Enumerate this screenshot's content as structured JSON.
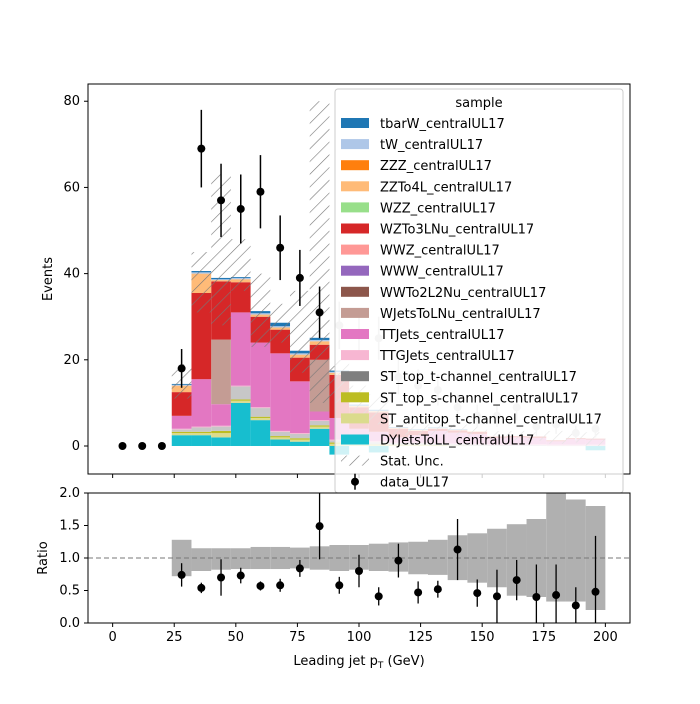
{
  "chart_data": [
    {
      "type": "bar",
      "subtype": "stacked-histogram",
      "ylabel": "Events",
      "xlim": [
        -10,
        210
      ],
      "ylim": [
        -6.5,
        84
      ],
      "yticks": [
        0,
        20,
        40,
        60,
        80
      ],
      "bins": [
        24,
        32,
        40,
        48,
        56,
        64,
        72,
        80,
        88,
        96,
        104,
        112,
        120,
        128,
        136,
        144,
        152,
        160,
        168,
        176,
        184,
        192,
        200
      ],
      "legend": {
        "title": "sample",
        "position": "upper right",
        "entries": [
          {
            "label": "tbarW_centralUL17",
            "color": "#1f77b4"
          },
          {
            "label": "tW_centralUL17",
            "color": "#aec7e8"
          },
          {
            "label": "ZZZ_centralUL17",
            "color": "#ff7f0e"
          },
          {
            "label": "ZZTo4L_centralUL17",
            "color": "#ffbb78"
          },
          {
            "label": "WZZ_centralUL17",
            "color": "#98df8a"
          },
          {
            "label": "WZTo3LNu_centralUL17",
            "color": "#d62728"
          },
          {
            "label": "WWZ_centralUL17",
            "color": "#ff9896"
          },
          {
            "label": "WWW_centralUL17",
            "color": "#9467bd"
          },
          {
            "label": "WWTo2L2Nu_centralUL17",
            "color": "#8c564b"
          },
          {
            "label": "WJetsToLNu_centralUL17",
            "color": "#c49c94"
          },
          {
            "label": "TTJets_centralUL17",
            "color": "#e377c2"
          },
          {
            "label": "TTGJets_centralUL17",
            "color": "#f7b6d2"
          },
          {
            "label": "ST_top_t-channel_centralUL17",
            "color": "#7f7f7f"
          },
          {
            "label": "ST_top_s-channel_centralUL17",
            "color": "#bcbd22"
          },
          {
            "label": "ST_antitop_t-channel_centralUL17",
            "color": "#dbdb8d"
          },
          {
            "label": "DYJetsToLL_centralUL17",
            "color": "#17becf"
          },
          {
            "label": "Stat. Unc.",
            "kind": "hatch"
          },
          {
            "label": "data_UL17",
            "kind": "errorbar"
          }
        ]
      },
      "stack": [
        {
          "name": "DYJetsToLL_centralUL17",
          "color": "#17becf",
          "values": [
            2.5,
            2.5,
            2,
            10,
            6,
            1.5,
            1,
            4,
            -2,
            0,
            -1.5,
            0,
            0,
            0,
            0,
            0,
            0,
            0,
            0,
            0,
            0,
            -1
          ]
        },
        {
          "name": "ST_antitop_t-channel_centralUL17",
          "color": "#dbdb8d",
          "values": [
            0.5,
            0.5,
            1,
            0.5,
            0.5,
            0.5,
            0.5,
            0.5,
            0.5,
            0.2,
            0.3,
            0.2,
            0.2,
            0.1,
            0.1,
            0,
            0,
            0,
            0,
            0,
            0,
            0
          ]
        },
        {
          "name": "ST_top_s-channel_centralUL17",
          "color": "#bcbd22",
          "values": [
            0.3,
            0.3,
            0.5,
            0.3,
            0.3,
            0.3,
            0.3,
            0.3,
            0.3,
            0.1,
            0.1,
            0.1,
            0.1,
            0.1,
            0,
            0,
            0,
            0,
            0,
            0,
            0,
            0
          ]
        },
        {
          "name": "ST_top_t-channel_centralUL17",
          "color": "#c7c7c7",
          "values": [
            0.5,
            1,
            1,
            3,
            2,
            1,
            1,
            1,
            0.5,
            0.5,
            0.5,
            0.3,
            0.3,
            0.3,
            0.3,
            0.3,
            0.2,
            0.2,
            0.2,
            0.1,
            0.1,
            0.1
          ]
        },
        {
          "name": "TTGJets_centralUL17",
          "color": "#f7b6d2",
          "values": [
            0.2,
            0.2,
            0.2,
            0.2,
            0.2,
            0.2,
            0.2,
            0.2,
            0.2,
            0.2,
            0.2,
            0.2,
            0.2,
            0.2,
            0.2,
            0.2,
            0.2,
            0.2,
            0.2,
            0.2,
            0.2,
            0.2
          ]
        },
        {
          "name": "TTJets_centralUL17",
          "color": "#e377c2",
          "values": [
            3,
            11,
            5,
            17,
            15,
            18,
            12,
            2,
            5,
            3,
            2.2,
            1.2,
            1.7,
            2.8,
            2.5,
            2.3,
            1.5,
            1.6,
            1.5,
            0.8,
            1.3,
            1.2
          ]
        },
        {
          "name": "WJetsToLNu_centralUL17",
          "color": "#c49c94",
          "values": [
            0,
            0,
            15,
            0,
            0,
            0,
            0,
            12,
            0,
            0,
            0,
            0,
            0,
            0,
            0,
            0,
            0,
            0,
            0,
            0,
            0,
            0
          ]
        },
        {
          "name": "WWTo2L2Nu_centralUL17",
          "color": "#8c564b",
          "values": [
            0,
            0,
            0,
            0,
            0,
            0,
            0,
            0,
            0,
            0,
            0,
            0,
            0,
            0,
            0,
            0,
            0,
            0,
            0,
            0,
            0,
            0
          ]
        },
        {
          "name": "WWW_centralUL17",
          "color": "#9467bd",
          "values": [
            0,
            0,
            0,
            0,
            0,
            0,
            0,
            0,
            0,
            0,
            0,
            0,
            0,
            0,
            0,
            0,
            0,
            0,
            0,
            0,
            0,
            0
          ]
        },
        {
          "name": "WWZ_centralUL17",
          "color": "#ff9896",
          "values": [
            0,
            0,
            0,
            0,
            0,
            0,
            0,
            0,
            0,
            0,
            0,
            0,
            0,
            0,
            0,
            0,
            0,
            0,
            0,
            0,
            0,
            0
          ]
        },
        {
          "name": "WZTo3LNu_centralUL17",
          "color": "#d62728",
          "values": [
            5.5,
            20,
            13.5,
            7,
            6,
            5.5,
            5.5,
            3.5,
            10,
            5,
            4.5,
            2,
            1,
            0.5,
            0.5,
            0.5,
            0.3,
            0.3,
            0.3,
            0.2,
            0.2,
            0.2
          ]
        },
        {
          "name": "WZZ_centralUL17",
          "color": "#98df8a",
          "values": [
            0,
            0,
            0,
            0,
            0,
            0,
            0,
            0,
            0,
            0,
            0,
            0,
            0,
            0,
            0,
            0,
            0,
            0,
            0,
            0,
            0,
            0
          ]
        },
        {
          "name": "ZZTo4L_centralUL17",
          "color": "#ffbb78",
          "values": [
            1.5,
            4.5,
            0.3,
            0.7,
            0.5,
            0.5,
            0.7,
            0.8,
            0.5,
            0.3,
            0.3,
            0.2,
            0.2,
            0.1,
            0.1,
            0.1,
            0,
            0,
            0,
            0,
            0,
            0
          ]
        },
        {
          "name": "ZZZ_centralUL17",
          "color": "#ff7f0e",
          "values": [
            0,
            0,
            0,
            0,
            0,
            0,
            0,
            0,
            0,
            0,
            0,
            0,
            0,
            0,
            0,
            0,
            0,
            0,
            0,
            0,
            0,
            0
          ]
        },
        {
          "name": "tW_centralUL17",
          "color": "#aec7e8",
          "values": [
            0.2,
            0.3,
            0.2,
            0.3,
            0.3,
            0.3,
            0.3,
            0.3,
            0.2,
            0.1,
            0.1,
            0.1,
            0.1,
            0.1,
            0.1,
            0,
            0,
            0,
            0,
            0,
            0,
            0
          ]
        },
        {
          "name": "tbarW_centralUL17",
          "color": "#1f77b4",
          "values": [
            0.2,
            0.3,
            0.3,
            0.2,
            0.5,
            0.8,
            0.6,
            0.5,
            0.3,
            0.2,
            0.2,
            0.1,
            0.1,
            0.1,
            0.1,
            0,
            0,
            0,
            0,
            0,
            0,
            0
          ]
        }
      ],
      "stat_unc": {
        "low": [
          11,
          31,
          28,
          36,
          23,
          24,
          17,
          10,
          10,
          6,
          5,
          2.5,
          2.5,
          2.5,
          2.5,
          2.3,
          1.5,
          1.4,
          1.2,
          0.5,
          0.8,
          0
        ],
        "high": [
          19,
          45,
          63,
          48,
          40,
          33,
          36,
          80,
          20,
          14,
          12,
          5.5,
          5,
          5,
          5,
          4.5,
          3.5,
          3.5,
          3.2,
          3.5,
          3,
          3.2
        ]
      },
      "data": {
        "name": "data_UL17",
        "x": [
          4,
          12,
          20,
          28,
          36,
          44,
          52,
          60,
          68,
          76,
          84,
          92,
          100,
          108,
          116,
          124,
          132,
          140,
          148,
          156,
          164,
          172,
          180,
          188,
          196
        ],
        "y": [
          0,
          0,
          0,
          18,
          69,
          57,
          55,
          59,
          46,
          39,
          31,
          28,
          26,
          25,
          16,
          14,
          13,
          9,
          7,
          7,
          9,
          4.5,
          5,
          3,
          4
        ],
        "err": [
          0,
          0,
          0,
          4.5,
          9,
          8.5,
          8,
          8.5,
          7.5,
          6.5,
          6,
          5.5,
          5.2,
          5,
          4,
          3.8,
          3.6,
          3,
          2.6,
          2.6,
          3,
          2.1,
          2.2,
          1.7,
          2
        ],
        "faded_from_x": 90
      }
    },
    {
      "type": "scatter",
      "subtype": "ratio",
      "xlabel": "Leading jet  p",
      "xlabel_sub": "T",
      "xlabel_unit": " (GeV)",
      "ylabel": "Ratio",
      "xlim": [
        -10,
        210
      ],
      "ylim": [
        0,
        2
      ],
      "yticks": [
        "0.0",
        "0.5",
        "1.0",
        "1.5",
        "2.0"
      ],
      "xticks": [
        "0",
        "25",
        "50",
        "75",
        "100",
        "125",
        "150",
        "175",
        "200"
      ],
      "reference_line": 1.0,
      "band": {
        "low": [
          0.72,
          0.8,
          0.82,
          0.83,
          0.83,
          0.83,
          0.84,
          0.82,
          0.8,
          0.82,
          0.8,
          0.79,
          0.75,
          0.74,
          0.66,
          0.62,
          0.55,
          0.42,
          0.4,
          0.33,
          0.33,
          0.2
        ],
        "high": [
          1.28,
          1.15,
          1.15,
          1.15,
          1.17,
          1.17,
          1.16,
          1.18,
          1.2,
          1.2,
          1.22,
          1.24,
          1.25,
          1.28,
          1.35,
          1.38,
          1.45,
          1.52,
          1.6,
          2.0,
          1.9,
          1.8
        ]
      },
      "points": {
        "x": [
          28,
          36,
          44,
          52,
          60,
          68,
          76,
          84,
          92,
          100,
          108,
          116,
          124,
          132,
          140,
          148,
          156,
          164,
          172,
          180,
          188,
          196
        ],
        "y": [
          0.74,
          0.54,
          0.7,
          0.73,
          0.57,
          0.58,
          0.84,
          1.49,
          0.58,
          0.8,
          0.41,
          0.96,
          0.47,
          0.52,
          1.13,
          0.46,
          0.41,
          0.66,
          0.4,
          0.43,
          0.27,
          0.48
        ],
        "err": [
          0.18,
          0.08,
          0.28,
          0.12,
          0.07,
          0.1,
          0.13,
          0.51,
          0.13,
          0.25,
          0.14,
          0.26,
          0.17,
          0.13,
          0.47,
          0.21,
          0.41,
          0.31,
          0.5,
          0.47,
          0.28,
          0.86
        ]
      }
    }
  ]
}
